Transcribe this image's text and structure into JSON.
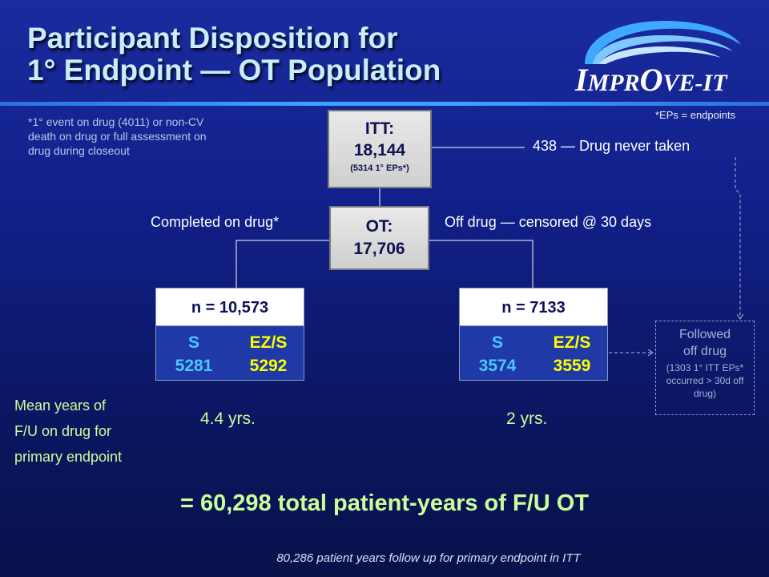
{
  "title": {
    "line1": "Participant Disposition for",
    "line2": "1° Endpoint — OT Population"
  },
  "logo": {
    "name": "IMPROVE-IT",
    "icon": "swoosh-logo-icon",
    "letters": [
      "I",
      "MPR",
      "O",
      "VE",
      "-",
      "IT"
    ]
  },
  "notes": {
    "closeout": "*1° event on drug (4011) or non-CV death on drug or full assessment on drug during  closeout",
    "eps": "*EPs = endpoints"
  },
  "itt": {
    "label": "ITT:",
    "count": "18,144",
    "eps": "(5314 1° EPs*)"
  },
  "ot": {
    "label": "OT:",
    "count": "17,706"
  },
  "labels": {
    "never_taken": "438 — Drug never taken",
    "completed": "Completed on drug*",
    "censored": "Off drug — censored @ 30 days"
  },
  "groups": {
    "left": {
      "header": "n = 10,573",
      "s_label": "S",
      "s_value": "5281",
      "ez_label": "EZ/S",
      "ez_value": "5292",
      "years": "4.4 yrs."
    },
    "right": {
      "header": "n = 7133",
      "s_label": "S",
      "s_value": "3574",
      "ez_label": "EZ/S",
      "ez_value": "3559",
      "years": "2 yrs."
    }
  },
  "mean_years": {
    "line1": "Mean years of",
    "line2": "F/U on drug for",
    "line3": "primary endpoint"
  },
  "followed": {
    "line1": "Followed",
    "line2": "off drug",
    "detail": "(1303 1° ITT EPs* occurred > 30d off drug)"
  },
  "total": "= 60,298 total patient-years of F/U OT",
  "itt_note": "80,286 patient years follow up for primary endpoint in ITT",
  "colors": {
    "background": "#11208a",
    "title": "#c9ecff",
    "accent_green": "#c8ff9a",
    "s_blue": "#4cc6ff",
    "ez_yellow": "#ffff00",
    "box_grey": "#d8d8d8"
  }
}
